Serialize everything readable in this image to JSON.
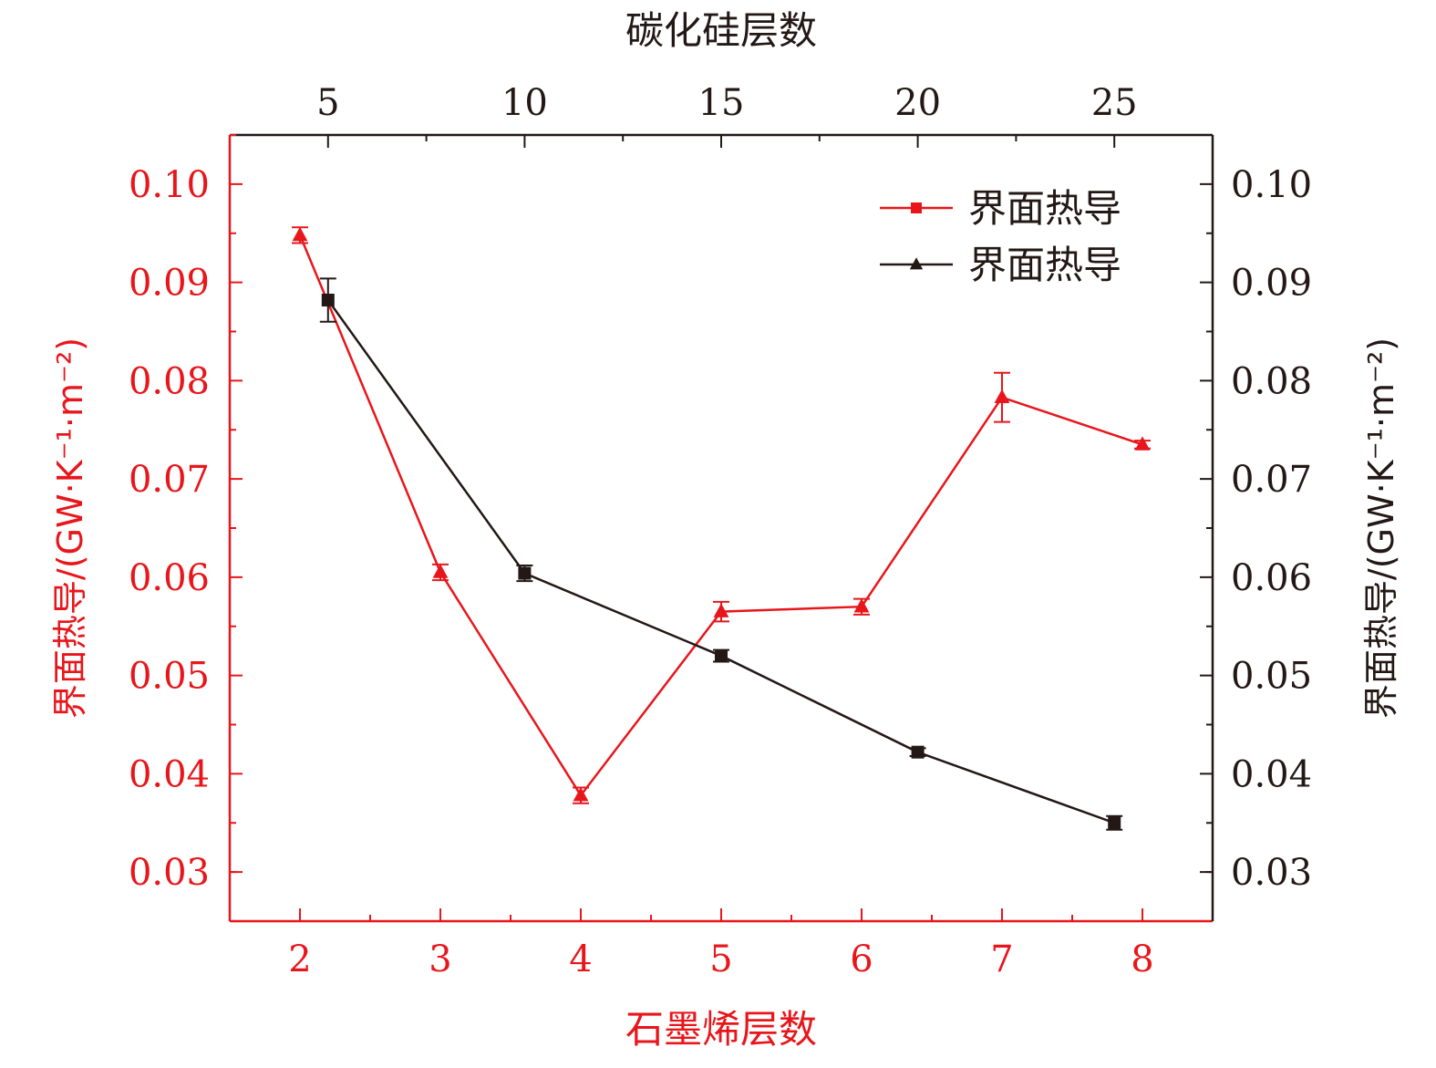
{
  "chart_data": {
    "type": "line",
    "xlabel": "石墨烯层数",
    "x2label": "碳化硅层数",
    "ylabel": "界面热导/(GW·K⁻¹·m⁻²)",
    "y2label": "界面热导/(GW·K⁻¹·m⁻²)",
    "xlim": [
      1.5,
      8.5
    ],
    "x2lim": [
      2.5,
      27.5
    ],
    "ylim": [
      0.025,
      0.105
    ],
    "y2lim": [
      0.025,
      0.105
    ],
    "x_ticks": [
      2,
      3,
      4,
      5,
      6,
      7,
      8
    ],
    "x_tick_labels": [
      "2",
      "3",
      "4",
      "5",
      "6",
      "7",
      "8"
    ],
    "x2_ticks": [
      5,
      10,
      15,
      20,
      25
    ],
    "x2_tick_labels": [
      "5",
      "10",
      "15",
      "20",
      "25"
    ],
    "y_ticks": [
      0.03,
      0.04,
      0.05,
      0.06,
      0.07,
      0.08,
      0.09,
      0.1
    ],
    "y_tick_labels": [
      "0.03",
      "0.04",
      "0.05",
      "0.06",
      "0.07",
      "0.08",
      "0.09",
      "0.10"
    ],
    "y2_tick_labels": [
      "0.03",
      "0.04",
      "0.05",
      "0.06",
      "0.07",
      "0.08",
      "0.09",
      "0.10"
    ],
    "legend_position": "top-right",
    "grid": false,
    "series": [
      {
        "name": "界面热导",
        "axis": "bottom-left",
        "color": "#e8161b",
        "marker": "triangle",
        "legend_marker": "square",
        "x": [
          2,
          3,
          4,
          5,
          6,
          7,
          8
        ],
        "y": [
          0.0948,
          0.0605,
          0.0378,
          0.0565,
          0.057,
          0.0783,
          0.0735
        ],
        "err": [
          0.0008,
          0.0008,
          0.0008,
          0.001,
          0.0008,
          0.0025,
          0.0004
        ]
      },
      {
        "name": "界面热导",
        "axis": "top-right",
        "color": "#231815",
        "marker": "square",
        "legend_marker": "triangle",
        "x": [
          5,
          10,
          15,
          20,
          25
        ],
        "y": [
          0.0882,
          0.0604,
          0.052,
          0.0422,
          0.035
        ],
        "err": [
          0.0022,
          0.0008,
          0.0006,
          0.0004,
          0.0007
        ]
      }
    ]
  }
}
